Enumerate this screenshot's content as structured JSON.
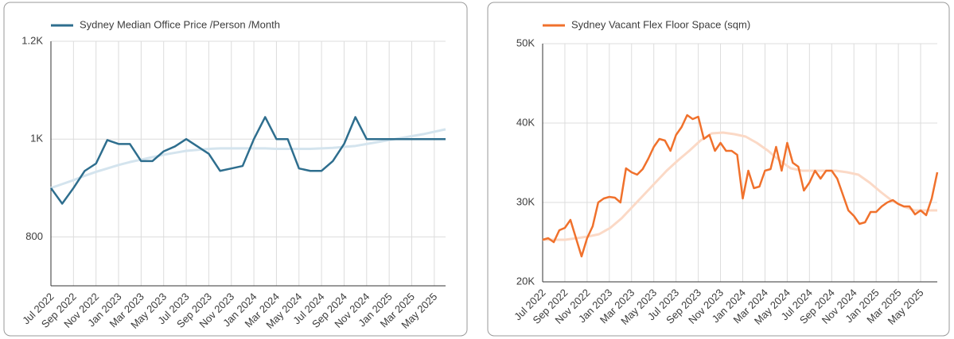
{
  "chart_data": [
    {
      "type": "line",
      "ylim": [
        700,
        1200
      ],
      "yticks": [
        {
          "value": 800,
          "label": "800"
        },
        {
          "value": 1000,
          "label": "1K"
        },
        {
          "value": 1200,
          "label": "1.2K"
        }
      ],
      "grid": true,
      "categories": [
        "Jul 2022",
        null,
        "Sep 2022",
        null,
        "Nov 2022",
        null,
        "Jan 2023",
        null,
        "Mar 2023",
        null,
        "May 2023",
        null,
        "Jul 2023",
        null,
        "Sep 2023",
        null,
        "Nov 2023",
        null,
        "Jan 2024",
        null,
        "Mar 2024",
        null,
        "May 2024",
        null,
        "Jul 2024",
        null,
        "Sep 2024",
        null,
        "Nov 2024",
        null,
        "Jan 2025",
        null,
        "Mar 2025",
        null,
        "May 2025",
        null
      ],
      "series": [
        {
          "name": "Sydney Median Office Price /Person /Month",
          "color": "#2e6e8e",
          "values": [
            900,
            868,
            900,
            935,
            950,
            998,
            990,
            990,
            955,
            955,
            975,
            985,
            1000,
            985,
            970,
            935,
            940,
            945,
            1000,
            1045,
            1000,
            1000,
            940,
            935,
            935,
            955,
            990,
            1045,
            1000,
            1000,
            1000,
            1000,
            1000,
            1000,
            1000,
            1000
          ]
        }
      ],
      "trend": {
        "color": "#d4e4ee",
        "values": [
          900,
          908,
          916,
          925,
          933,
          940,
          947,
          953,
          958,
          963,
          968,
          972,
          976,
          978,
          980,
          981,
          981,
          981,
          981,
          981,
          980,
          980,
          980,
          980,
          981,
          982,
          984,
          986,
          990,
          994,
          998,
          1002,
          1006,
          1010,
          1015,
          1020
        ]
      }
    },
    {
      "type": "line",
      "ylim": [
        20000,
        50000
      ],
      "yticks": [
        {
          "value": 20000,
          "label": "20K"
        },
        {
          "value": 30000,
          "label": "30K"
        },
        {
          "value": 40000,
          "label": "40K"
        },
        {
          "value": 50000,
          "label": "50K"
        }
      ],
      "grid": true,
      "categories": [
        "Jul 2022",
        null,
        null,
        null,
        "Sep 2022",
        null,
        null,
        null,
        "Nov 2022",
        null,
        null,
        null,
        "Jan 2023",
        null,
        null,
        null,
        "Mar 2023",
        null,
        null,
        null,
        "May 2023",
        null,
        null,
        null,
        "Jul 2023",
        null,
        null,
        null,
        "Sep 2023",
        null,
        null,
        null,
        "Nov 2023",
        null,
        null,
        null,
        "Jan 2024",
        null,
        null,
        null,
        "Mar 2024",
        null,
        null,
        null,
        "May 2024",
        null,
        null,
        null,
        "Jul 2024",
        null,
        null,
        null,
        "Sep 2024",
        null,
        null,
        null,
        "Nov 2024",
        null,
        null,
        null,
        "Jan 2025",
        null,
        null,
        null,
        "Mar 2025",
        null,
        null,
        null,
        "May 2025",
        null,
        null,
        null
      ],
      "series": [
        {
          "name": "Sydney Vacant Flex Floor Space (sqm)",
          "color": "#f0712c",
          "values": [
            25300,
            25500,
            25000,
            26500,
            26800,
            27800,
            25500,
            23200,
            25500,
            27000,
            30000,
            30500,
            30700,
            30600,
            30000,
            34300,
            33800,
            33500,
            34200,
            35500,
            37000,
            38000,
            37800,
            36500,
            38500,
            39500,
            41000,
            40500,
            40800,
            38000,
            38500,
            36500,
            37500,
            36500,
            36500,
            36000,
            30500,
            34000,
            31800,
            32000,
            34000,
            34200,
            37000,
            34000,
            37500,
            35000,
            34500,
            31500,
            32500,
            34000,
            33000,
            34000,
            34000,
            33000,
            31000,
            29000,
            28300,
            27300,
            27500,
            28800,
            28800,
            29500,
            30000,
            30300,
            29800,
            29500,
            29500,
            28500,
            29000,
            28400,
            30500,
            33800
          ]
        }
      ],
      "trend": {
        "color": "#fbd9c6",
        "values": [
          25300,
          25300,
          25300,
          25500,
          25700,
          26000,
          26800,
          28000,
          29500,
          31000,
          32500,
          34000,
          35300,
          36500,
          37800,
          38700,
          38800,
          38600,
          38300,
          37500,
          36500,
          35300,
          34300,
          34000,
          34000,
          34000,
          34000,
          33800,
          33500,
          32500,
          31300,
          30200,
          29500,
          29000,
          29000,
          29000
        ]
      }
    }
  ]
}
